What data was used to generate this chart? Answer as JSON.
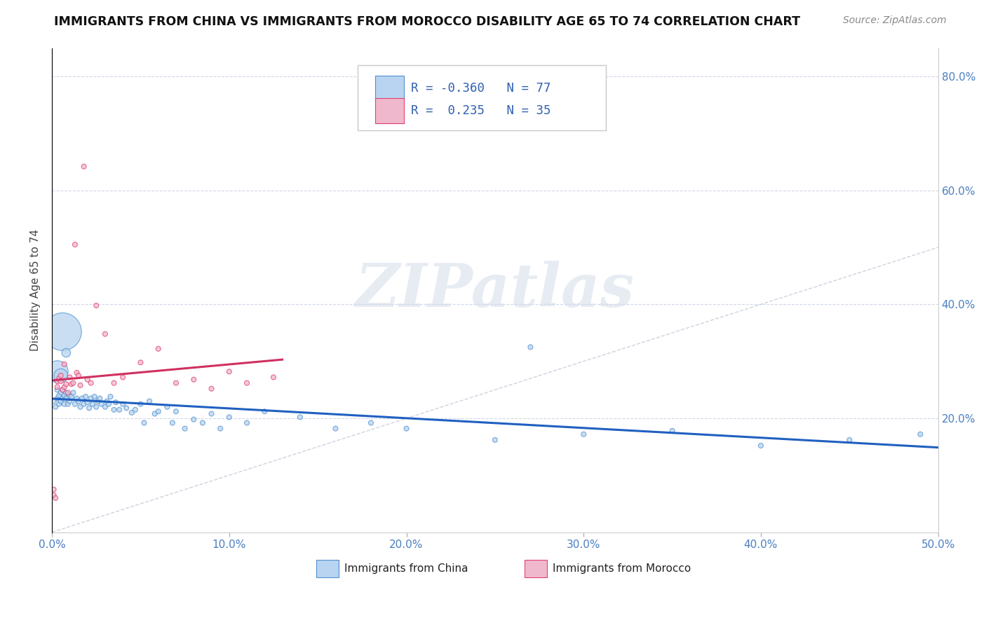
{
  "title": "IMMIGRANTS FROM CHINA VS IMMIGRANTS FROM MOROCCO DISABILITY AGE 65 TO 74 CORRELATION CHART",
  "source": "Source: ZipAtlas.com",
  "ylabel": "Disability Age 65 to 74",
  "legend_china": "Immigrants from China",
  "legend_morocco": "Immigrants from Morocco",
  "R_china": "-0.360",
  "N_china": "77",
  "R_morocco": "0.235",
  "N_morocco": "35",
  "color_china_fill": "#b8d4f0",
  "color_china_edge": "#5090d0",
  "color_morocco_fill": "#f0b8cc",
  "color_morocco_edge": "#e04070",
  "color_china_line": "#2060c0",
  "color_morocco_line": "#d03060",
  "color_diag_line": "#c0c8d8",
  "watermark_color": "#d0dae8",
  "xlim": [
    0.0,
    0.5
  ],
  "ylim": [
    0.0,
    0.85
  ],
  "xticks": [
    0.0,
    0.1,
    0.2,
    0.3,
    0.4,
    0.5
  ],
  "xticklabels": [
    "0.0%",
    "10.0%",
    "20.0%",
    "30.0%",
    "40.0%",
    "50.0%"
  ],
  "right_yticks": [
    0.2,
    0.4,
    0.6,
    0.8
  ],
  "right_yticklabels": [
    "20.0%",
    "40.0%",
    "60.0%",
    "80.0%"
  ],
  "china_x": [
    0.001,
    0.002,
    0.003,
    0.003,
    0.004,
    0.004,
    0.005,
    0.005,
    0.006,
    0.006,
    0.007,
    0.007,
    0.008,
    0.008,
    0.009,
    0.01,
    0.01,
    0.011,
    0.012,
    0.013,
    0.014,
    0.015,
    0.016,
    0.017,
    0.018,
    0.019,
    0.02,
    0.021,
    0.022,
    0.023,
    0.024,
    0.025,
    0.026,
    0.027,
    0.028,
    0.03,
    0.031,
    0.032,
    0.033,
    0.035,
    0.036,
    0.038,
    0.04,
    0.042,
    0.045,
    0.047,
    0.05,
    0.052,
    0.055,
    0.058,
    0.06,
    0.065,
    0.068,
    0.07,
    0.075,
    0.08,
    0.085,
    0.09,
    0.095,
    0.1,
    0.11,
    0.12,
    0.14,
    0.16,
    0.18,
    0.2,
    0.25,
    0.3,
    0.35,
    0.4,
    0.45,
    0.49,
    0.003,
    0.005,
    0.006,
    0.008,
    0.27
  ],
  "china_y": [
    0.23,
    0.22,
    0.235,
    0.25,
    0.225,
    0.24,
    0.23,
    0.245,
    0.235,
    0.25,
    0.225,
    0.24,
    0.235,
    0.245,
    0.225,
    0.24,
    0.23,
    0.238,
    0.245,
    0.225,
    0.235,
    0.23,
    0.22,
    0.235,
    0.225,
    0.238,
    0.228,
    0.218,
    0.235,
    0.225,
    0.238,
    0.22,
    0.23,
    0.235,
    0.225,
    0.22,
    0.23,
    0.225,
    0.238,
    0.215,
    0.228,
    0.215,
    0.225,
    0.218,
    0.21,
    0.215,
    0.225,
    0.192,
    0.23,
    0.208,
    0.212,
    0.22,
    0.192,
    0.212,
    0.182,
    0.198,
    0.192,
    0.208,
    0.182,
    0.202,
    0.192,
    0.212,
    0.202,
    0.182,
    0.192,
    0.182,
    0.162,
    0.172,
    0.178,
    0.152,
    0.162,
    0.172,
    0.282,
    0.275,
    0.352,
    0.315,
    0.325
  ],
  "china_sizes": [
    25,
    25,
    25,
    25,
    25,
    25,
    25,
    25,
    25,
    25,
    25,
    25,
    25,
    25,
    25,
    25,
    25,
    25,
    25,
    25,
    25,
    25,
    25,
    25,
    25,
    25,
    25,
    25,
    25,
    25,
    25,
    25,
    25,
    25,
    25,
    25,
    25,
    25,
    25,
    25,
    25,
    25,
    25,
    25,
    25,
    25,
    25,
    25,
    25,
    25,
    25,
    25,
    25,
    25,
    25,
    25,
    25,
    25,
    25,
    25,
    25,
    25,
    25,
    25,
    25,
    25,
    25,
    25,
    25,
    25,
    25,
    25,
    500,
    200,
    1500,
    80,
    25
  ],
  "morocco_x": [
    0.001,
    0.001,
    0.002,
    0.003,
    0.003,
    0.004,
    0.005,
    0.005,
    0.006,
    0.007,
    0.007,
    0.008,
    0.009,
    0.01,
    0.011,
    0.012,
    0.013,
    0.014,
    0.015,
    0.016,
    0.018,
    0.02,
    0.022,
    0.025,
    0.03,
    0.035,
    0.04,
    0.05,
    0.06,
    0.07,
    0.08,
    0.09,
    0.1,
    0.11,
    0.125
  ],
  "morocco_y": [
    0.075,
    0.065,
    0.06,
    0.255,
    0.265,
    0.27,
    0.265,
    0.275,
    0.25,
    0.295,
    0.255,
    0.26,
    0.245,
    0.272,
    0.26,
    0.262,
    0.505,
    0.28,
    0.275,
    0.258,
    0.642,
    0.268,
    0.262,
    0.398,
    0.348,
    0.262,
    0.272,
    0.298,
    0.322,
    0.262,
    0.268,
    0.252,
    0.282,
    0.262,
    0.272
  ],
  "morocco_sizes": [
    25,
    25,
    25,
    25,
    25,
    25,
    25,
    25,
    25,
    25,
    25,
    25,
    25,
    25,
    25,
    25,
    25,
    25,
    25,
    25,
    25,
    25,
    25,
    25,
    25,
    25,
    25,
    25,
    25,
    25,
    25,
    25,
    25,
    25,
    25
  ]
}
